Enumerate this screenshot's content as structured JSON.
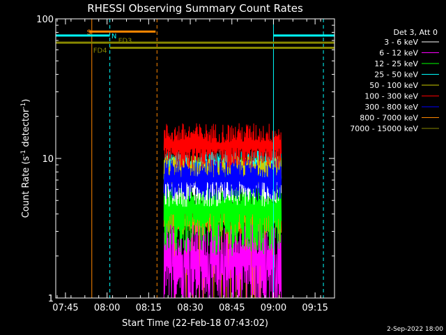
{
  "chart_data": {
    "type": "line",
    "title": "RHESSI Observing Summary Count Rates",
    "xlabel": "Start Time (22-Feb-18 07:43:02)",
    "ylabel_main": "Count Rate (s",
    "ylabel_sup1": "-1",
    "ylabel_mid": " detector",
    "ylabel_sup2": "-1",
    "ylabel_end": ")",
    "x_unit": "minutes after 07:43:02 on 22-Feb-18",
    "xlim": [
      -1.5,
      99
    ],
    "ylim": [
      1,
      100
    ],
    "yscale": "log",
    "x_ticks": [
      {
        "x": 2,
        "label": "07:45"
      },
      {
        "x": 17,
        "label": "08:00"
      },
      {
        "x": 32,
        "label": "08:15"
      },
      {
        "x": 47,
        "label": "08:30"
      },
      {
        "x": 62,
        "label": "08:45"
      },
      {
        "x": 77,
        "label": "09:00"
      },
      {
        "x": 92,
        "label": "09:15"
      }
    ],
    "y_ticks": [
      {
        "y": 1,
        "label": "1"
      },
      {
        "y": 10,
        "label": "10"
      },
      {
        "y": 100,
        "label": "100"
      }
    ],
    "data_window": [
      37.5,
      79.8
    ],
    "legend_title": "Det 3, Att 0",
    "legend_placement": "right",
    "series": [
      {
        "name": "3 - 6 keV",
        "color": "#ffffff",
        "low": 4.5,
        "high": 10
      },
      {
        "name": "6 - 12 keV",
        "color": "#ff00ff",
        "low": 1.0,
        "high": 3.5
      },
      {
        "name": "12 - 25 keV",
        "color": "#00ff00",
        "low": 2.0,
        "high": 9.5
      },
      {
        "name": "25 - 50 keV",
        "color": "#00ffff",
        "low": 7.0,
        "high": 11.5
      },
      {
        "name": "50 - 100 keV",
        "color": "#cccc00",
        "low": 6.5,
        "high": 10.5
      },
      {
        "name": "100 - 300 keV",
        "color": "#ff0000",
        "low": 8.5,
        "high": 18
      },
      {
        "name": "300 - 800 keV",
        "color": "#0000ff",
        "low": 5.0,
        "high": 10
      },
      {
        "name": "800 - 7000 keV",
        "color": "#ff8800",
        "low": 2.8,
        "high": 4.6
      },
      {
        "name": "7000 - 15000 keV",
        "color": "#888800",
        "low": 1.0,
        "high": 1.0
      }
    ],
    "flag_bars": [
      {
        "label": "S",
        "color": "#ff8800",
        "x_start": 10.5,
        "x_end": 34.5,
        "y": 81
      },
      {
        "label": "N",
        "color": "#00ffff",
        "x_start": -1.5,
        "x_end": 18,
        "y": 76
      },
      {
        "label": "N",
        "color": "#00ffff",
        "x_start": 77,
        "x_end": 99,
        "y": 76
      },
      {
        "label": "FD3",
        "color": "#888800",
        "x_start": -1.5,
        "x_end": 99,
        "y": 67.5
      },
      {
        "label": "FD4",
        "color": "#888800",
        "x_start": 18,
        "x_end": 99,
        "y": 62
      }
    ],
    "flag_labels": [
      {
        "text": "S",
        "color": "#ff8800",
        "x": 10.5,
        "y": 81
      },
      {
        "text": "N",
        "color": "#00ffff",
        "x": 19.5,
        "y": 76
      },
      {
        "text": "FD3",
        "color": "#888800",
        "x": 23.5,
        "y": 70.5
      },
      {
        "text": "FD4",
        "color": "#888800",
        "x": 14.5,
        "y": 60
      }
    ],
    "vertical_lines": [
      {
        "x": -1.5,
        "color": "#00ffff",
        "dashed": false
      },
      {
        "x": 11.5,
        "color": "#ff8800",
        "dashed": false
      },
      {
        "x": 18.0,
        "color": "#00ffff",
        "dashed": true
      },
      {
        "x": 35.0,
        "color": "#ff8800",
        "dashed": true
      },
      {
        "x": 77.0,
        "color": "#00ffff",
        "dashed": false
      },
      {
        "x": 95.0,
        "color": "#00ffff",
        "dashed": true
      }
    ]
  },
  "footer": {
    "date": "2-Sep-2022 18:00"
  }
}
